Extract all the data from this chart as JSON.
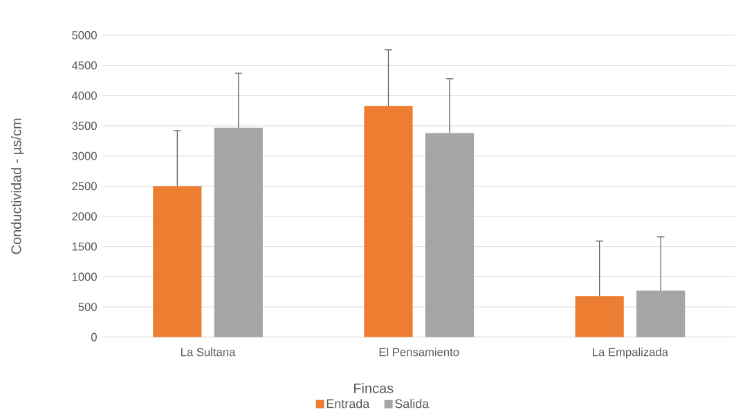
{
  "chart_data": {
    "type": "bar",
    "xlabel": "Fincas",
    "ylabel": "Conductividad - µs/cm",
    "categories": [
      "La Sultana",
      "El Pensamiento",
      "La Empalizada"
    ],
    "series": [
      {
        "name": "Entrada",
        "color": "#ed7d31",
        "values": [
          2500,
          3830,
          680
        ],
        "errors": [
          [
            2500,
            3420
          ],
          [
            3830,
            4760
          ],
          [
            680,
            1590
          ]
        ]
      },
      {
        "name": "Salida",
        "color": "#a5a5a5",
        "values": [
          3470,
          3380,
          770
        ],
        "errors": [
          [
            3470,
            4370
          ],
          [
            3380,
            4280
          ],
          [
            770,
            1660
          ]
        ]
      }
    ],
    "ylim": [
      0,
      5000
    ],
    "yticks": [
      0,
      500,
      1000,
      1500,
      2000,
      2500,
      3000,
      3500,
      4000,
      4500,
      5000
    ],
    "grid": "y",
    "legend": "bottom"
  }
}
